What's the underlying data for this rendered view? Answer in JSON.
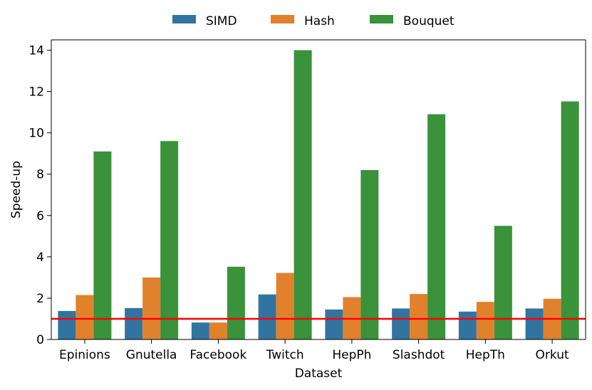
{
  "chart_data": {
    "type": "bar",
    "title": "",
    "xlabel": "Dataset",
    "ylabel": "Speed-up",
    "categories": [
      "Epinions",
      "Gnutella",
      "Facebook",
      "Twitch",
      "HepPh",
      "Slashdot",
      "HepTh",
      "Orkut"
    ],
    "series": [
      {
        "name": "SIMD",
        "color": "#3274a1",
        "values": [
          1.38,
          1.52,
          0.82,
          2.18,
          1.45,
          1.5,
          1.35,
          1.5
        ]
      },
      {
        "name": "Hash",
        "color": "#e1812c",
        "values": [
          2.15,
          3.0,
          0.82,
          3.22,
          2.05,
          2.2,
          1.82,
          1.97
        ]
      },
      {
        "name": "Bouquet",
        "color": "#3a923a",
        "values": [
          9.1,
          9.6,
          3.52,
          14.0,
          8.2,
          10.9,
          5.5,
          11.52
        ]
      }
    ],
    "ylim": [
      0,
      14.5
    ],
    "yticks": [
      0,
      2,
      4,
      6,
      8,
      10,
      12,
      14
    ],
    "reference_line": {
      "y": 1.0,
      "color": "#ff0000"
    },
    "legend": "top-center"
  }
}
